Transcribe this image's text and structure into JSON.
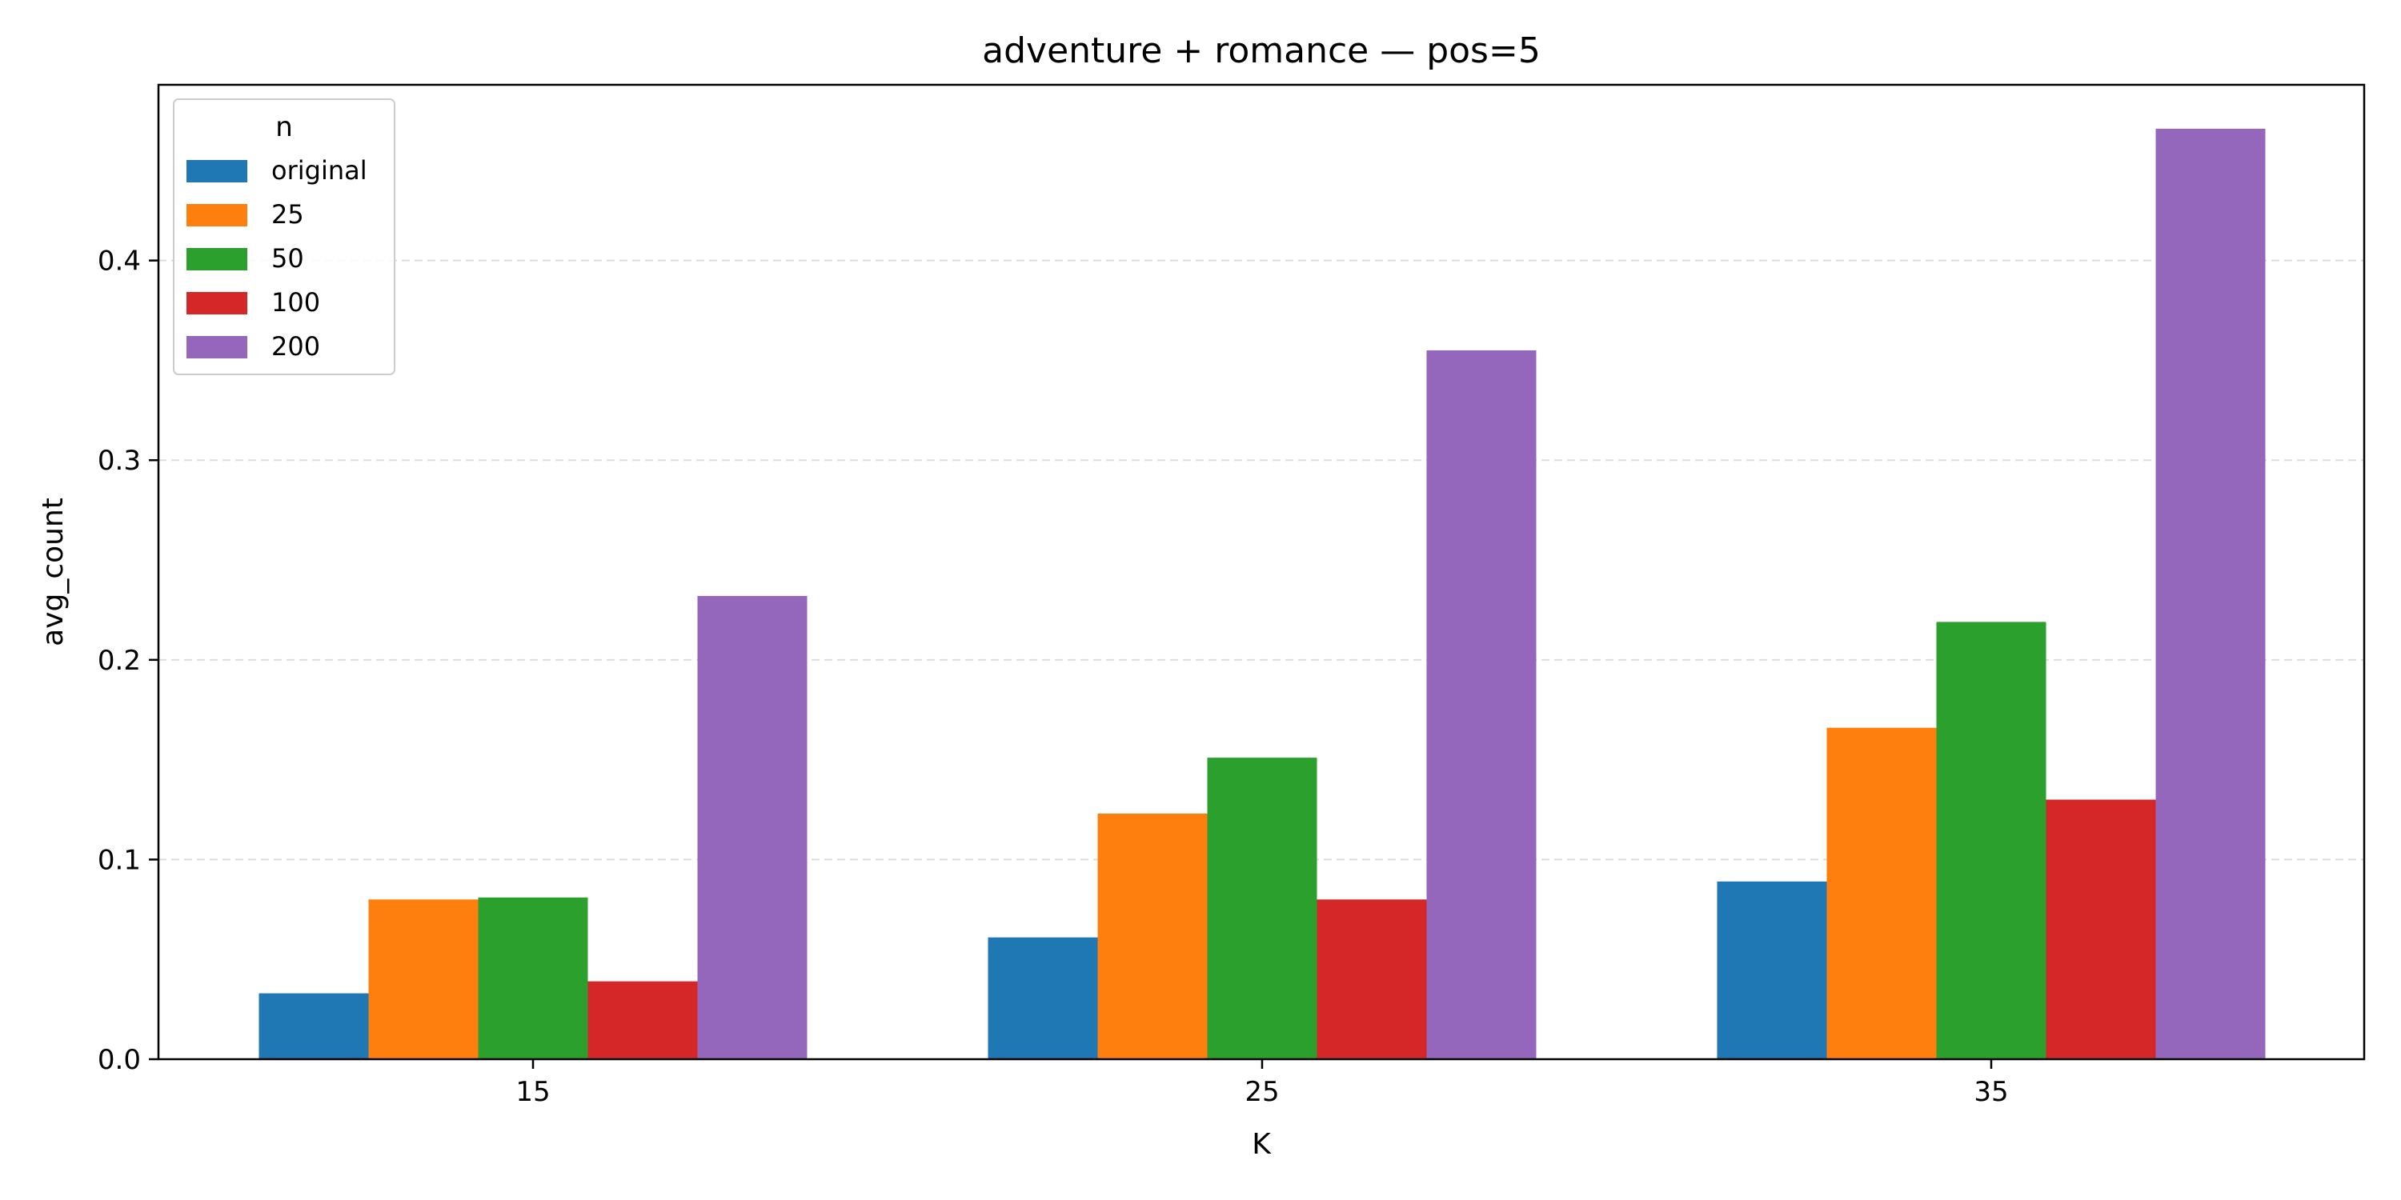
{
  "chart_data": {
    "type": "bar",
    "title": "adventure + romance — pos=5",
    "xlabel": "K",
    "ylabel": "avg_count",
    "categories": [
      "15",
      "25",
      "35"
    ],
    "ylim": [
      0,
      0.488
    ],
    "yticks": [
      "0.0",
      "0.1",
      "0.2",
      "0.3",
      "0.4"
    ],
    "ytick_values": [
      0.0,
      0.1,
      0.2,
      0.3,
      0.4
    ],
    "grid": "y-dashed",
    "legend": {
      "title": "n",
      "placement": "top-left"
    },
    "series": [
      {
        "name": "original",
        "color": "#1f77b4",
        "values": [
          0.033,
          0.061,
          0.089
        ]
      },
      {
        "name": "25",
        "color": "#ff7f0e",
        "values": [
          0.08,
          0.123,
          0.166
        ]
      },
      {
        "name": "50",
        "color": "#2ca02c",
        "values": [
          0.081,
          0.151,
          0.219
        ]
      },
      {
        "name": "100",
        "color": "#d62728",
        "values": [
          0.039,
          0.08,
          0.13
        ]
      },
      {
        "name": "200",
        "color": "#9467bd",
        "values": [
          0.232,
          0.355,
          0.466
        ]
      }
    ]
  }
}
